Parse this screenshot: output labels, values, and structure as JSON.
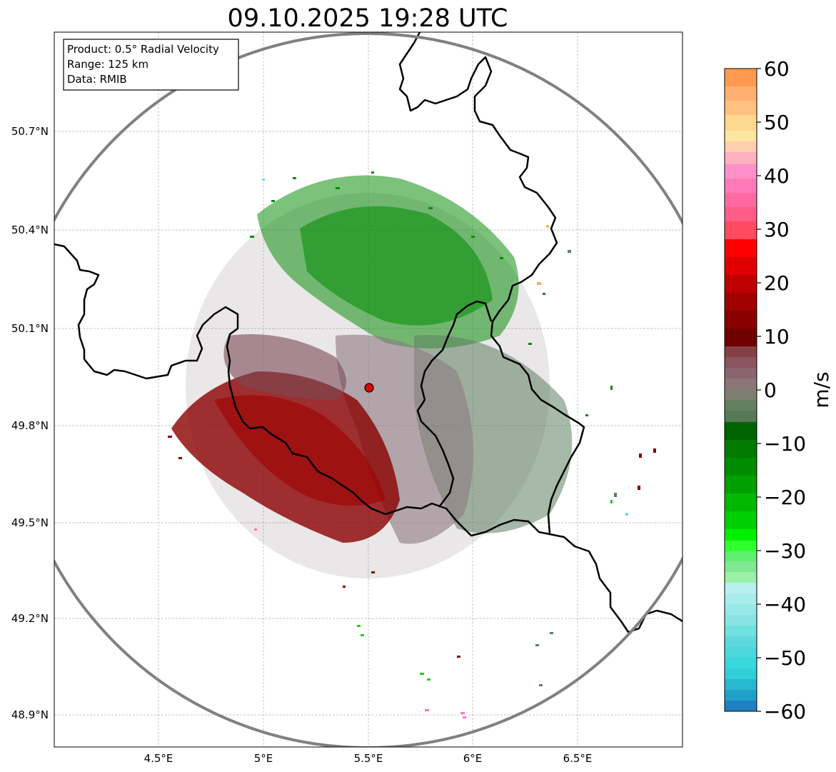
{
  "title": "09.10.2025 19:28 UTC",
  "info_box": {
    "product": "Product: 0.5° Radial Velocity",
    "range": "Range: 125 km",
    "data": "Data: RMIB"
  },
  "axes": {
    "lon_ticks": [
      "4.5°E",
      "5°E",
      "5.5°E",
      "6°E",
      "6.5°E"
    ],
    "lat_ticks": [
      "50.7°N",
      "50.4°N",
      "50.1°N",
      "49.8°N",
      "49.5°N",
      "49.2°N",
      "48.9°N"
    ]
  },
  "colorbar": {
    "label": "m/s",
    "ticks": [
      "60",
      "50",
      "40",
      "30",
      "20",
      "10",
      "0",
      "−10",
      "−20",
      "−30",
      "−40",
      "−50",
      "−60"
    ],
    "range": [
      -60,
      60
    ]
  },
  "radar_site": {
    "lon": 5.5,
    "lat": 49.91
  },
  "colors": {
    "inbound_strong": "#0090ff",
    "inbound": "#00b000",
    "neutral": "#8a7a7a",
    "outbound": "#8b0000",
    "border": "#000000",
    "range_ring": "#808080",
    "site_marker": "#e00000"
  }
}
